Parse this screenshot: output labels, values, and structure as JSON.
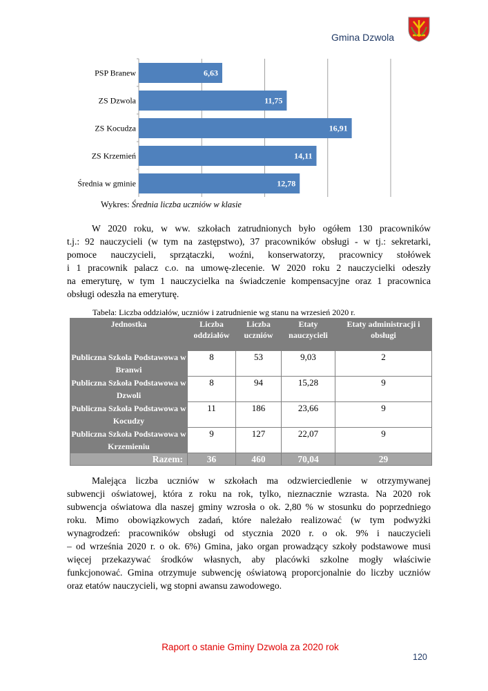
{
  "header": {
    "title": "Gmina Dzwola",
    "logo_text": "Herb Gminy Dzwola"
  },
  "chart_data": {
    "type": "bar",
    "orientation": "horizontal",
    "categories": [
      "PSP Branew",
      "ZS Dzwola",
      "ZS Kocudza",
      "ZS Krzemień",
      "Średnia w gminie"
    ],
    "values": [
      6.63,
      11.75,
      16.91,
      14.11,
      12.78
    ],
    "value_labels": [
      "6,63",
      "11,75",
      "16,91",
      "14,11",
      "12,78"
    ],
    "xlim": [
      0,
      20
    ],
    "gridlines": [
      5,
      10,
      15,
      20
    ],
    "grid": true,
    "bar_color": "#4f81bd",
    "caption_prefix": "Wykres: ",
    "caption_title": "Średnia liczba uczniów w klasie"
  },
  "paragraph1": [
    "W 2020 roku, w ww. szkołach zatrudnionych było ogółem 130 pracowników",
    "t.j.: 92 nauczycieli (w tym na zastępstwo), 37 pracowników obsługi - w tj.: sekretarki,",
    "pomoce nauczycieli, sprzątaczki, woźni, konserwatorzy, pracownicy stołówek",
    "i 1 pracownik palacz c.o. na umowę-zlecenie. W 2020 roku 2 nauczycielki odeszły",
    "na emeryturę, w tym 1 nauczycielka na świadczenie kompensacyjne oraz 1 pracownica",
    "obsługi odeszła na emeryturę."
  ],
  "table": {
    "caption": "Tabela: Liczba oddziałów, uczniów i zatrudnienie wg stanu na wrzesień 2020 r.",
    "headers": [
      "Jednostka",
      "Liczba oddziałów",
      "Liczba uczniów",
      "Etaty nauczycieli",
      "Etaty administracji i obsługi"
    ],
    "rows": [
      {
        "unit": "Publiczna Szkoła Podstawowa w Branwi",
        "oddzialy": "8",
        "uczniowie": "53",
        "nauczyciele": "9,03",
        "obsluga": "2"
      },
      {
        "unit": "Publiczna Szkoła Podstawowa w Dzwoli",
        "oddzialy": "8",
        "uczniowie": "94",
        "nauczyciele": "15,28",
        "obsluga": "9"
      },
      {
        "unit": "Publiczna Szkoła Podstawowa w Kocudzy",
        "oddzialy": "11",
        "uczniowie": "186",
        "nauczyciele": "23,66",
        "obsluga": "9"
      },
      {
        "unit": "Publiczna Szkoła Podstawowa w Krzemieniu",
        "oddzialy": "9",
        "uczniowie": "127",
        "nauczyciele": "22,07",
        "obsluga": "9"
      }
    ],
    "total": {
      "label": "Razem:",
      "oddzialy": "36",
      "uczniowie": "460",
      "nauczyciele": "70,04",
      "obsluga": "29"
    }
  },
  "paragraph2": [
    "Malejąca liczba uczniów w szkołach ma odzwierciedlenie w otrzymywanej",
    "subwencji oświatowej, która z roku na rok, tylko, nieznacznie wzrasta. Na 2020 rok",
    "subwencja oświatowa dla naszej gminy wzrosła o ok. 2,80 % w stosunku do poprzedniego",
    "roku. Mimo obowiązkowych zadań, które należało realizować (w tym podwyżki",
    "wynagrodzeń: pracowników obsługi od stycznia 2020 r. o ok. 9% i nauczycieli",
    "– od września 2020 r. o ok. 6%) Gmina, jako organ prowadzący szkoły podstawowe musi",
    "więcej przekazywać środków własnych, aby placówki szkolne mogły właściwie",
    "funkcjonować. Gmina otrzymuje subwencję oświatową proporcjonalnie do liczby uczniów",
    "oraz etatów nauczycieli, wg stopni awansu zawodowego."
  ],
  "footer": {
    "report_title": "Raport o stanie Gminy Dzwola za 2020 rok",
    "page_number": "120"
  }
}
